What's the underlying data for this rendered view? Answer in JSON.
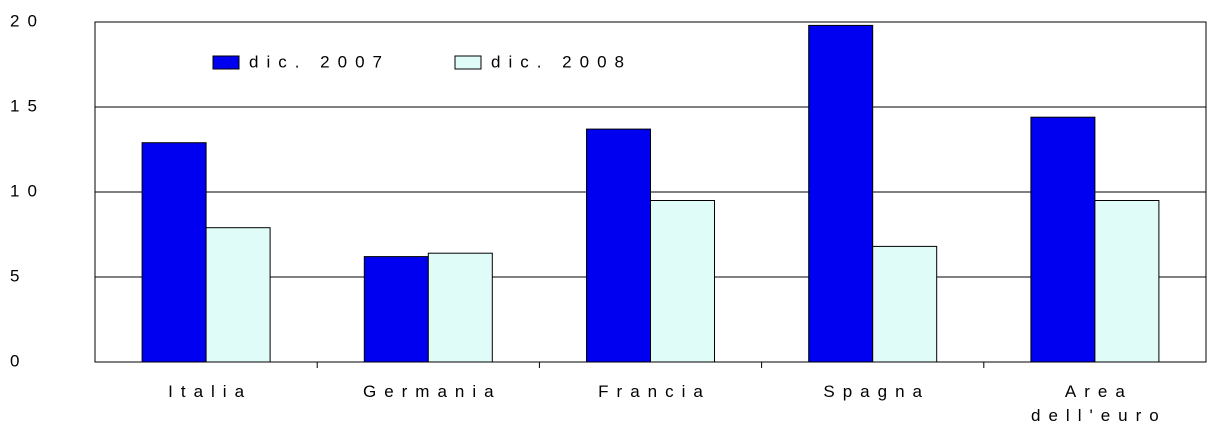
{
  "chart_data": {
    "type": "bar",
    "categories": [
      "Italia",
      "Germania",
      "Francia",
      "Spagna",
      "Area dell'euro"
    ],
    "series": [
      {
        "name": "dic. 2007",
        "color": "#0000f0",
        "values": [
          12.9,
          6.2,
          13.7,
          19.8,
          14.4
        ]
      },
      {
        "name": "dic. 2008",
        "color": "#e0fcf8",
        "values": [
          7.9,
          6.4,
          9.5,
          6.8,
          9.5
        ]
      }
    ],
    "ylim": [
      0,
      20
    ],
    "yticks": [
      0,
      5,
      10,
      15,
      20
    ],
    "grid": true
  }
}
